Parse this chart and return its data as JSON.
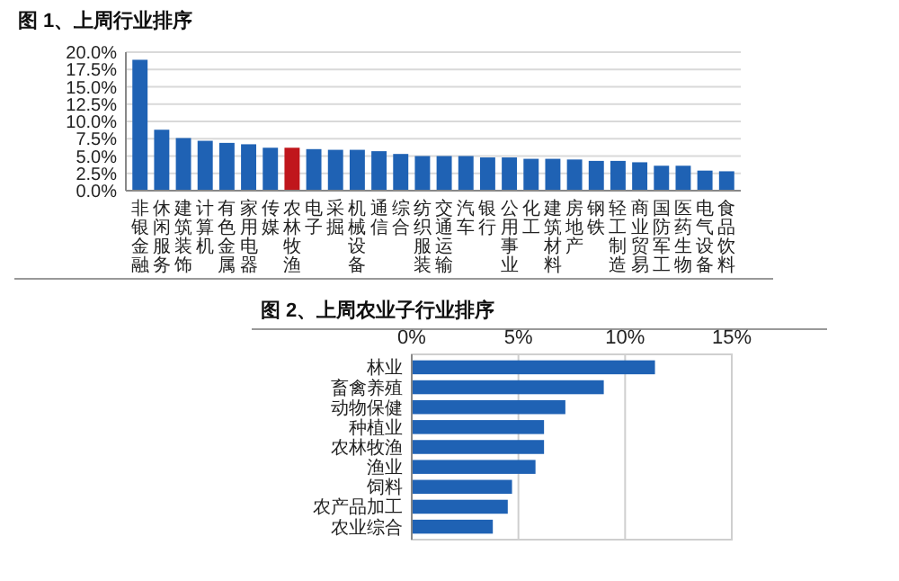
{
  "chart_data": [
    {
      "type": "bar",
      "title": "图 1、上周行业排序",
      "categories": [
        "非银金融",
        "休闲服务",
        "建筑装饰",
        "计算机",
        "有色金属",
        "家用电器",
        "传媒",
        "农林牧渔",
        "电子",
        "采掘",
        "机械设备",
        "通信",
        "综合",
        "纺织服装",
        "交通运输",
        "汽车",
        "银行",
        "公用事业",
        "化工",
        "建筑材料",
        "房地产",
        "钢铁",
        "轻工制造",
        "商业贸易",
        "国防军工",
        "医药生物",
        "电气设备",
        "食品饮料"
      ],
      "values": [
        18.9,
        8.8,
        7.6,
        7.2,
        6.9,
        6.7,
        6.2,
        6.2,
        6.0,
        5.9,
        5.9,
        5.7,
        5.3,
        5.0,
        5.0,
        5.0,
        4.8,
        4.8,
        4.6,
        4.6,
        4.5,
        4.3,
        4.3,
        4.1,
        3.6,
        3.6,
        2.9,
        2.8
      ],
      "colors": [
        "#1f62b4",
        "#1f62b4",
        "#1f62b4",
        "#1f62b4",
        "#1f62b4",
        "#1f62b4",
        "#1f62b4",
        "#c0161c",
        "#1f62b4",
        "#1f62b4",
        "#1f62b4",
        "#1f62b4",
        "#1f62b4",
        "#1f62b4",
        "#1f62b4",
        "#1f62b4",
        "#1f62b4",
        "#1f62b4",
        "#1f62b4",
        "#1f62b4",
        "#1f62b4",
        "#1f62b4",
        "#1f62b4",
        "#1f62b4",
        "#1f62b4",
        "#1f62b4",
        "#1f62b4",
        "#1f62b4"
      ],
      "ylim": [
        0,
        20
      ],
      "yticks": [
        {
          "value": 0,
          "label": "0.0%"
        },
        {
          "value": 2.5,
          "label": "2.5%"
        },
        {
          "value": 5,
          "label": "5.0%"
        },
        {
          "value": 7.5,
          "label": "7.5%"
        },
        {
          "value": 10,
          "label": "10.0%"
        },
        {
          "value": 12.5,
          "label": "12.5%"
        },
        {
          "value": 15,
          "label": "15.0%"
        },
        {
          "value": 17.5,
          "label": "17.5%"
        },
        {
          "value": 20,
          "label": "20.0%"
        }
      ],
      "grid": "y"
    },
    {
      "type": "bar",
      "orientation": "horizontal",
      "title": "图 2、上周农业子行业排序",
      "categories": [
        "林业",
        "畜禽养殖",
        "动物保健",
        "种植业",
        "农林牧渔",
        "渔业",
        "饲料",
        "农产品加工",
        "农业综合"
      ],
      "values": [
        11.4,
        9.0,
        7.2,
        6.2,
        6.2,
        5.8,
        4.7,
        4.5,
        3.8
      ],
      "color": "#1f62b4",
      "xlim": [
        0,
        15
      ],
      "xticks": [
        {
          "value": 0,
          "label": "0%"
        },
        {
          "value": 5,
          "label": "5%"
        },
        {
          "value": 10,
          "label": "10%"
        },
        {
          "value": 15,
          "label": "15%"
        }
      ],
      "grid": "x"
    }
  ]
}
